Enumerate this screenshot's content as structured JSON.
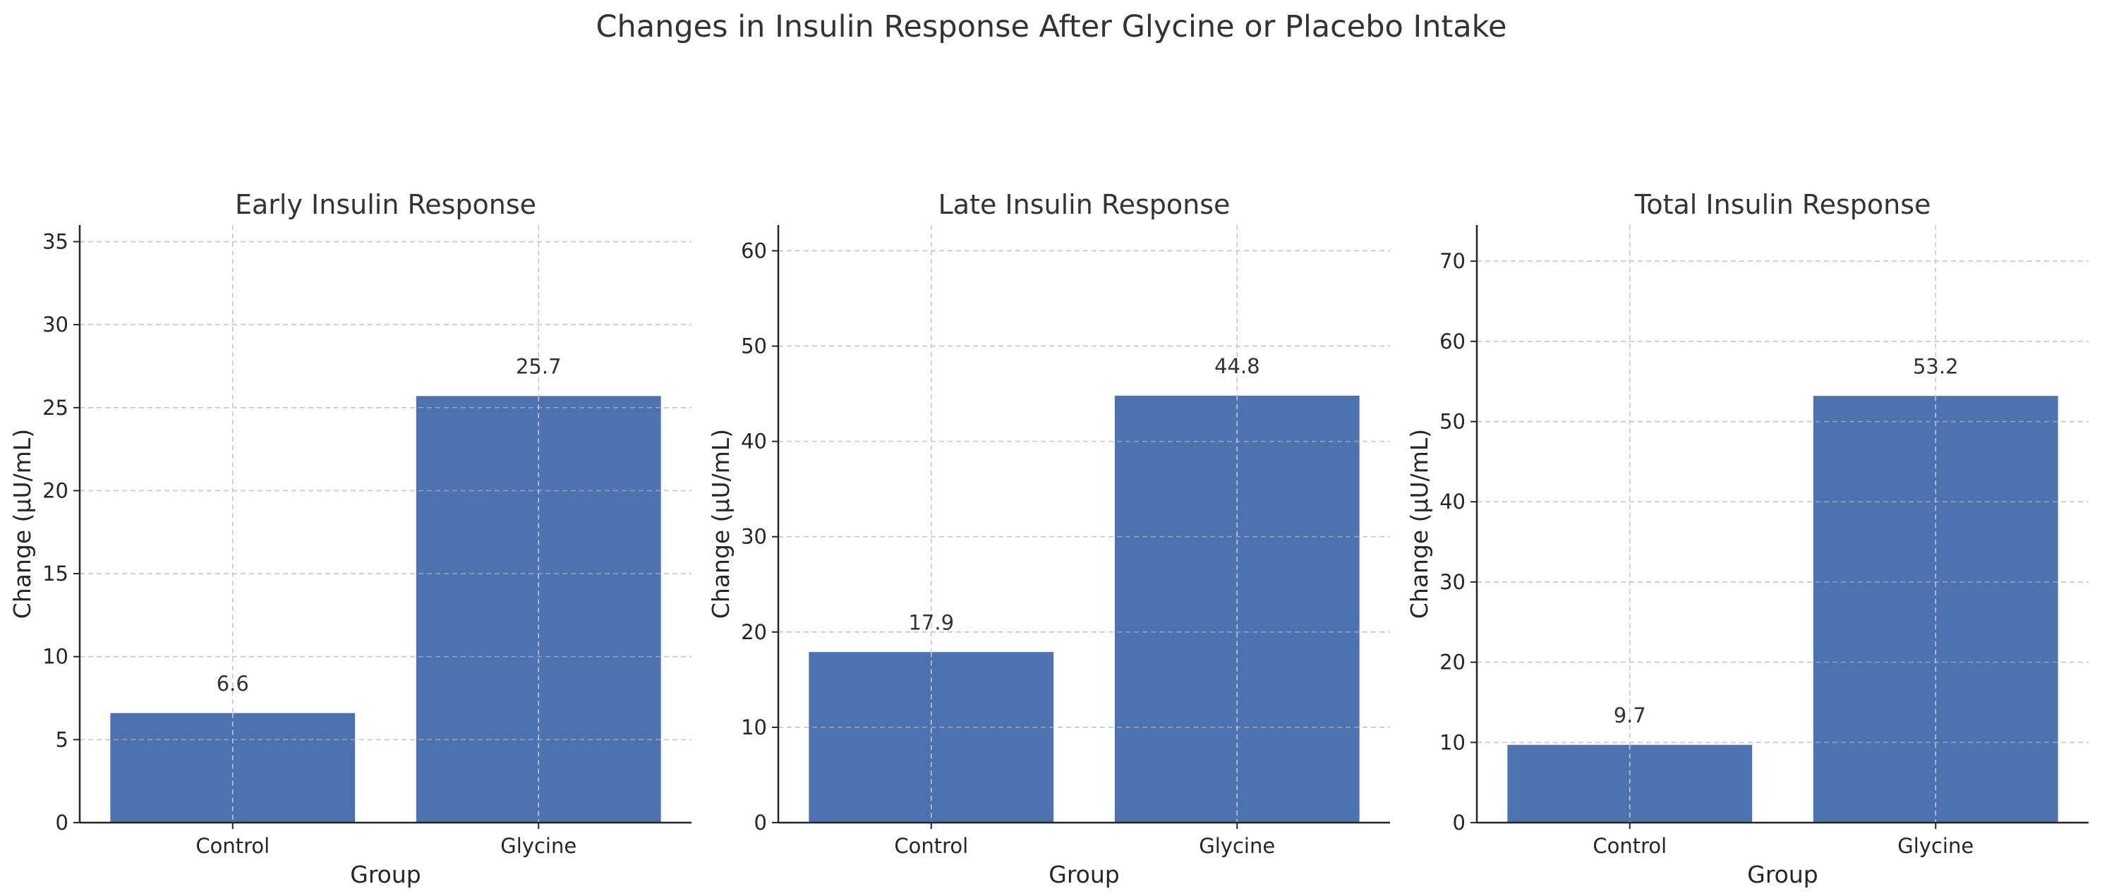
{
  "figure": {
    "title": "Changes in Insulin Response After Glycine or Placebo Intake"
  },
  "colors": {
    "bar": "#4c72b0",
    "grid": "#c8c8c8",
    "axis": "#262626",
    "text": "#333333"
  },
  "chart_data": [
    {
      "type": "bar",
      "title": "Early Insulin Response",
      "xlabel": "Group",
      "ylabel": "Change (µU/mL)",
      "categories": [
        "Control",
        "Glycine"
      ],
      "values": [
        6.6,
        25.7
      ],
      "value_labels": [
        "6.6",
        "25.7"
      ],
      "ylim": [
        0,
        36
      ],
      "yticks": [
        0,
        5,
        10,
        15,
        20,
        25,
        30,
        35
      ],
      "grid": true
    },
    {
      "type": "bar",
      "title": "Late Insulin Response",
      "xlabel": "Group",
      "ylabel": "Change (µU/mL)",
      "categories": [
        "Control",
        "Glycine"
      ],
      "values": [
        17.9,
        44.8
      ],
      "value_labels": [
        "17.9",
        "44.8"
      ],
      "ylim": [
        0,
        62.7
      ],
      "yticks": [
        0,
        10,
        20,
        30,
        40,
        50,
        60
      ],
      "grid": true
    },
    {
      "type": "bar",
      "title": "Total Insulin Response",
      "xlabel": "Group",
      "ylabel": "Change (µU/mL)",
      "categories": [
        "Control",
        "Glycine"
      ],
      "values": [
        9.7,
        53.2
      ],
      "value_labels": [
        "9.7",
        "53.2"
      ],
      "ylim": [
        0,
        74.5
      ],
      "yticks": [
        0,
        10,
        20,
        30,
        40,
        50,
        60,
        70
      ],
      "grid": true
    }
  ]
}
